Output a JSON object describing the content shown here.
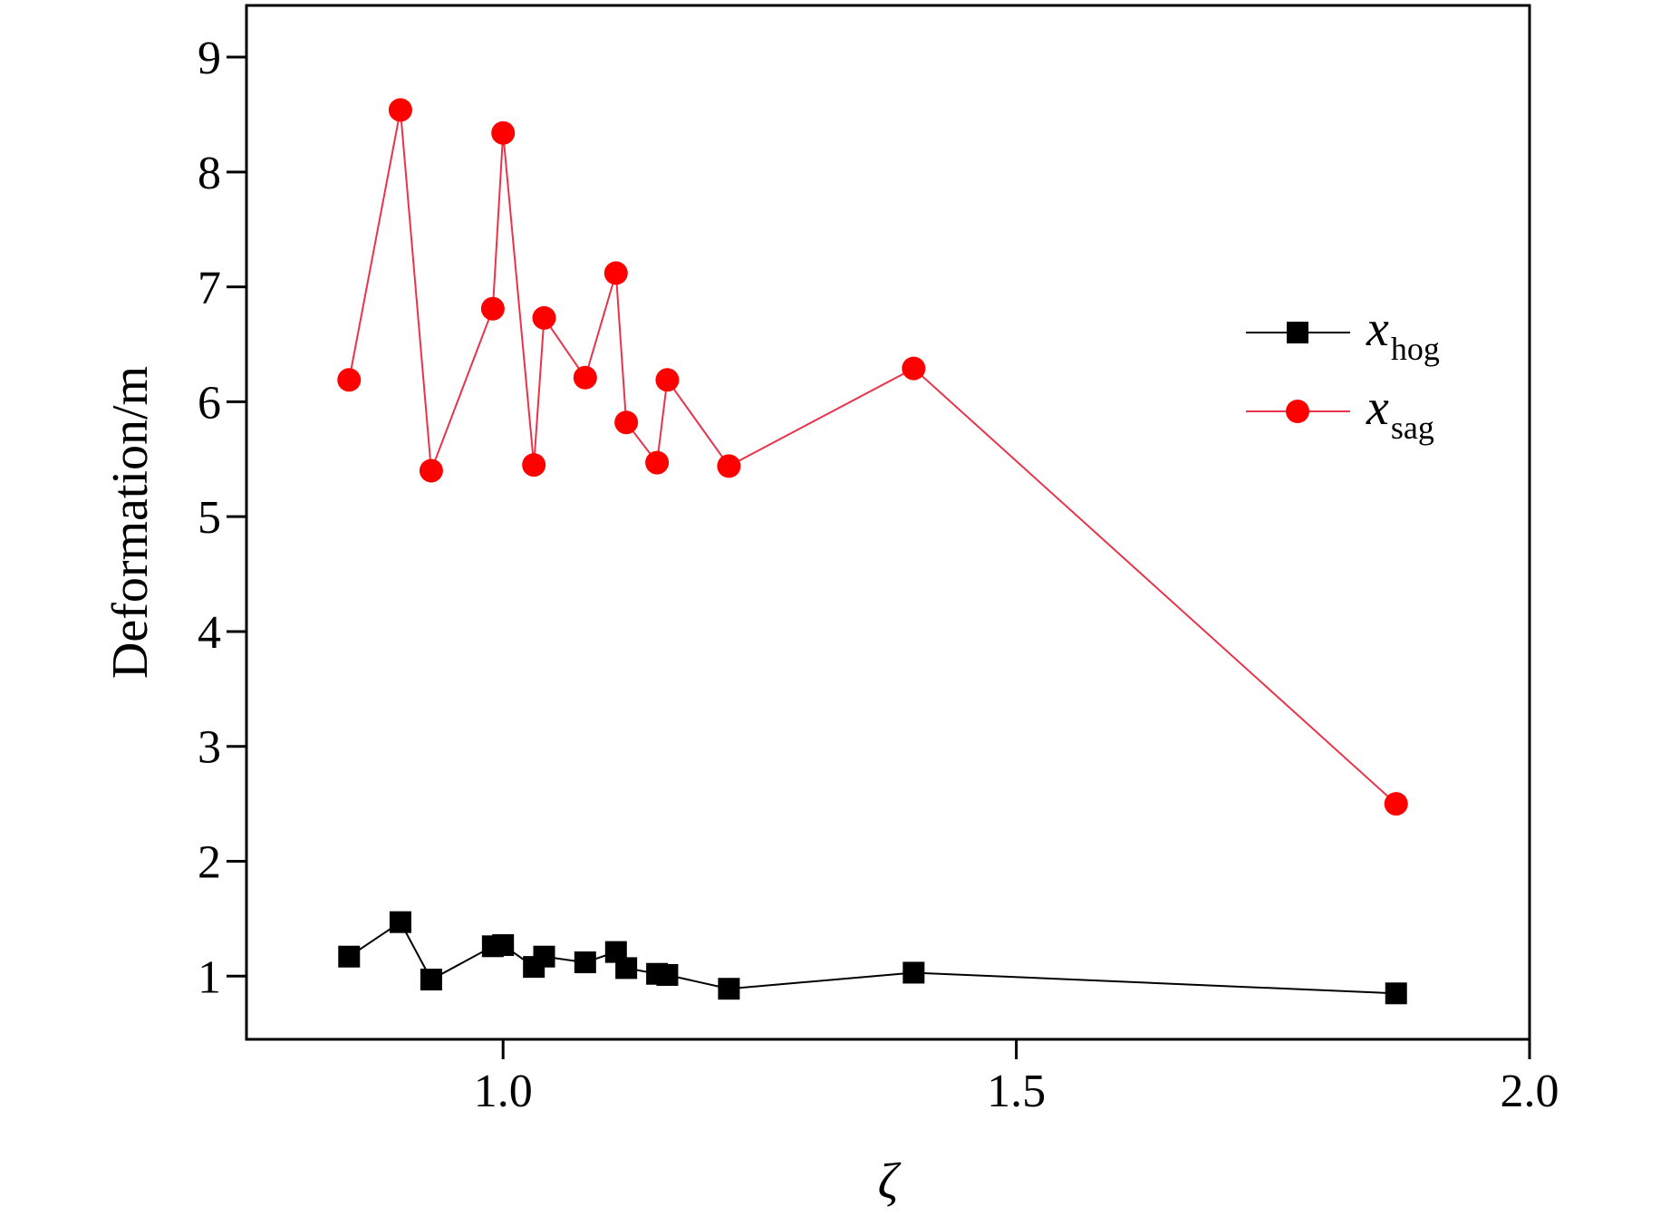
{
  "chart_data": {
    "type": "line",
    "xlabel": "ζ",
    "ylabel": "Deformation/m",
    "xlim": [
      0.75,
      2.0
    ],
    "ylim": [
      0.45,
      9.45
    ],
    "xticks": [
      1.0,
      1.5,
      2.0
    ],
    "xtick_labels": [
      "1.0",
      "1.5",
      "2.0"
    ],
    "yticks": [
      1,
      2,
      3,
      4,
      5,
      6,
      7,
      8,
      9
    ],
    "ytick_labels": [
      "1",
      "2",
      "3",
      "4",
      "5",
      "6",
      "7",
      "8",
      "9"
    ],
    "grid": false,
    "legend_position": "upper-right",
    "series": [
      {
        "name": "x",
        "subscript": "hog",
        "color": "#000000",
        "marker": "square",
        "x": [
          0.85,
          0.9,
          0.93,
          0.99,
          1.0,
          1.03,
          1.04,
          1.08,
          1.11,
          1.12,
          1.15,
          1.16,
          1.22,
          1.4,
          1.87
        ],
        "y": [
          1.17,
          1.47,
          0.97,
          1.26,
          1.27,
          1.08,
          1.17,
          1.12,
          1.21,
          1.07,
          1.02,
          1.01,
          0.89,
          1.03,
          0.85
        ]
      },
      {
        "name": "x",
        "subscript": "sag",
        "color": "#e8334a",
        "marker_color": "#ff0000",
        "marker": "circle",
        "x": [
          0.85,
          0.9,
          0.93,
          0.99,
          1.0,
          1.03,
          1.04,
          1.08,
          1.11,
          1.12,
          1.15,
          1.16,
          1.22,
          1.4,
          1.87
        ],
        "y": [
          6.19,
          8.54,
          5.4,
          6.81,
          8.34,
          5.45,
          6.73,
          6.21,
          7.12,
          5.82,
          5.47,
          6.19,
          5.44,
          6.29,
          2.5
        ]
      }
    ]
  }
}
